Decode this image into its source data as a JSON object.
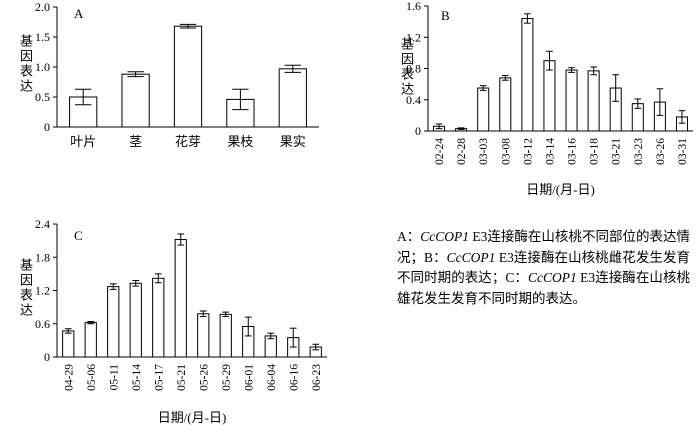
{
  "figure": {
    "background": "#ffffff",
    "bar_fill": "#ffffff",
    "bar_stroke": "#000000",
    "text_color": "#000000"
  },
  "chart_data": [
    {
      "id": "A",
      "type": "bar",
      "panel_label": "A",
      "ylabel": "基因表达",
      "xlabel": "",
      "ymax": 2.0,
      "yticks": [
        0,
        0.5,
        1.0,
        1.5,
        2.0
      ],
      "ytick_labels": [
        "0",
        "0.5",
        "1.0",
        "1.5",
        "2.0"
      ],
      "categories": [
        "叶片",
        "茎",
        "花芽",
        "果枝",
        "果实"
      ],
      "values": [
        0.5,
        0.88,
        1.68,
        0.46,
        0.97
      ],
      "errors": [
        0.13,
        0.04,
        0.03,
        0.17,
        0.06
      ],
      "grid": false,
      "legend": "none",
      "rotated_xticks": false
    },
    {
      "id": "B",
      "type": "bar",
      "panel_label": "B",
      "ylabel": "基因表达",
      "xlabel": "日期/(月-日)",
      "ymax": 1.6,
      "yticks": [
        0,
        0.4,
        0.8,
        1.2,
        1.6
      ],
      "ytick_labels": [
        "0",
        "0.4",
        "0.8",
        "1.2",
        "1.6"
      ],
      "categories": [
        "02-24",
        "02-28",
        "03-03",
        "03-08",
        "03-12",
        "03-14",
        "03-16",
        "03-18",
        "03-21",
        "03-23",
        "03-26",
        "03-31"
      ],
      "values": [
        0.06,
        0.03,
        0.55,
        0.68,
        1.44,
        0.9,
        0.78,
        0.77,
        0.55,
        0.35,
        0.37,
        0.18
      ],
      "errors": [
        0.03,
        0.01,
        0.03,
        0.03,
        0.06,
        0.12,
        0.03,
        0.05,
        0.17,
        0.06,
        0.17,
        0.08
      ],
      "grid": false,
      "legend": "none",
      "rotated_xticks": true
    },
    {
      "id": "C",
      "type": "bar",
      "panel_label": "C",
      "ylabel": "基因表达",
      "xlabel": "日期/(月-日)",
      "ymax": 2.4,
      "yticks": [
        0,
        0.6,
        1.2,
        1.8,
        2.4
      ],
      "ytick_labels": [
        "0",
        "0.6",
        "1.2",
        "1.8",
        "2.4"
      ],
      "categories": [
        "04-29",
        "05-06",
        "05-11",
        "05-14",
        "05-17",
        "05-21",
        "05-26",
        "05-29",
        "06-01",
        "06-04",
        "06-16",
        "06-23"
      ],
      "values": [
        0.47,
        0.62,
        1.27,
        1.33,
        1.42,
        2.12,
        0.78,
        0.77,
        0.55,
        0.38,
        0.35,
        0.18
      ],
      "errors": [
        0.04,
        0.02,
        0.05,
        0.05,
        0.08,
        0.1,
        0.05,
        0.04,
        0.17,
        0.05,
        0.17,
        0.05
      ],
      "grid": false,
      "legend": "none",
      "rotated_xticks": true
    }
  ],
  "caption": {
    "segments": [
      {
        "t": "A：",
        "i": false
      },
      {
        "t": "CcCOP1",
        "i": true
      },
      {
        "t": " E3连接酶在山核桃不同部位的表达情况；B：",
        "i": false
      },
      {
        "t": "CcCOP1",
        "i": true
      },
      {
        "t": " E3连接酶在山核桃雌花发生发育不同时期的表达；C：",
        "i": false
      },
      {
        "t": "CcCOP1",
        "i": true
      },
      {
        "t": " E3连接酶在山核桃雄花发生发育不同时期的表达。",
        "i": false
      }
    ]
  }
}
